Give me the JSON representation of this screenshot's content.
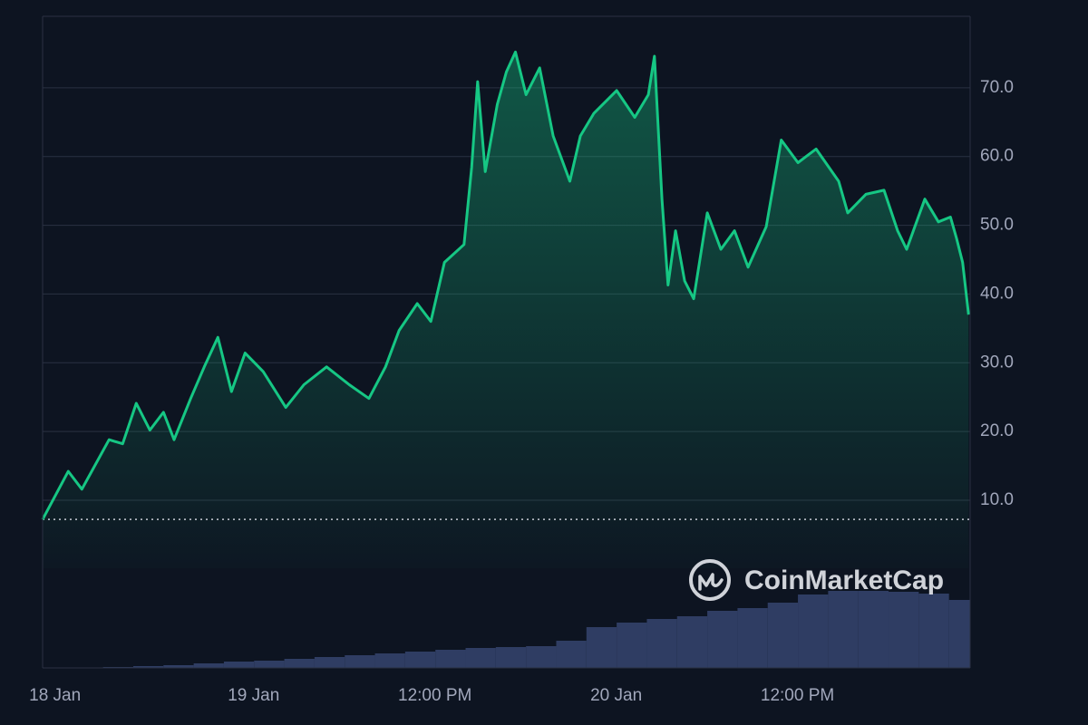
{
  "chart_data": {
    "type": "line",
    "watermark": "CoinMarketCap",
    "color": "#16c784",
    "x": [
      0,
      1.7,
      2.6,
      3.2,
      4.4,
      5.3,
      6.2,
      7.1,
      8,
      8.7,
      9.8,
      10.7,
      11.6,
      12.5,
      13.4,
      14.6,
      16.1,
      17.3,
      18.8,
      20.3,
      21.6,
      22.7,
      23.6,
      24.8,
      25.7,
      26.6,
      27.9,
      28.4,
      28.8,
      29.3,
      30.1,
      30.7,
      31.3,
      32,
      32.9,
      33.8,
      34.9,
      35.6,
      36.5,
      38,
      39.2,
      40.1,
      40.5,
      41,
      41.4,
      41.9,
      42.5,
      43.1,
      44,
      44.9,
      45.8,
      46.7,
      47.9,
      48.9,
      50,
      51.2,
      52.7,
      53.3,
      54.5,
      55.7,
      56.6,
      57.2,
      58.4,
      59.3,
      60.1,
      60.5,
      60.9,
      61.3
    ],
    "values": [
      7.2,
      14.2,
      11.6,
      14,
      18.8,
      18.2,
      24.1,
      20.2,
      22.8,
      18.8,
      24.8,
      29.4,
      33.7,
      25.8,
      31.4,
      28.7,
      23.5,
      26.8,
      29.4,
      26.8,
      24.8,
      29.4,
      34.7,
      38.6,
      36,
      44.6,
      47.2,
      58.4,
      70.9,
      57.8,
      67.6,
      72.3,
      75.2,
      69,
      72.9,
      63,
      56.4,
      63,
      66.3,
      69.6,
      65.7,
      69,
      74.6,
      53.8,
      41.3,
      49.2,
      41.9,
      39.3,
      51.8,
      46.5,
      49.2,
      43.9,
      49.8,
      62.4,
      59.1,
      61.1,
      56.4,
      51.8,
      54.5,
      55.1,
      49.2,
      46.5,
      53.8,
      50.5,
      51.2,
      48.1,
      44.6,
      37
    ],
    "xlim": [
      0,
      61.4
    ],
    "ylim": [
      -14.4,
      80.4
    ],
    "yticks": [
      {
        "value": 10,
        "label": "10.0"
      },
      {
        "value": 20,
        "label": "20.0"
      },
      {
        "value": 30,
        "label": "30.0"
      },
      {
        "value": 40,
        "label": "40.0"
      },
      {
        "value": 50,
        "label": "50.0"
      },
      {
        "value": 60,
        "label": "60.0"
      },
      {
        "value": 70,
        "label": "70.0"
      }
    ],
    "xticks": [
      {
        "value": 0.4,
        "label": "18 Jan"
      },
      {
        "value": 13.55,
        "label": "19 Jan"
      },
      {
        "value": 25.55,
        "label": "12:00 PM"
      },
      {
        "value": 37.55,
        "label": "20 Jan"
      },
      {
        "value": 49.55,
        "label": "12:00 PM"
      }
    ],
    "grid": true,
    "volume": {
      "color": "#2f3d63",
      "x": [
        0,
        2,
        4,
        6,
        8,
        10,
        12,
        14,
        16,
        18,
        20,
        22,
        24,
        26,
        28,
        30,
        32,
        34,
        36,
        38,
        40,
        42,
        44,
        46,
        48,
        50,
        52,
        54,
        56,
        58,
        60
      ],
      "values": [
        0,
        0,
        1,
        2,
        3,
        5,
        7,
        8,
        10,
        12,
        14,
        16,
        18,
        20,
        22,
        23,
        24,
        30,
        45,
        50,
        54,
        57,
        63,
        66,
        72,
        81,
        85,
        85,
        84,
        82,
        75
      ]
    }
  }
}
